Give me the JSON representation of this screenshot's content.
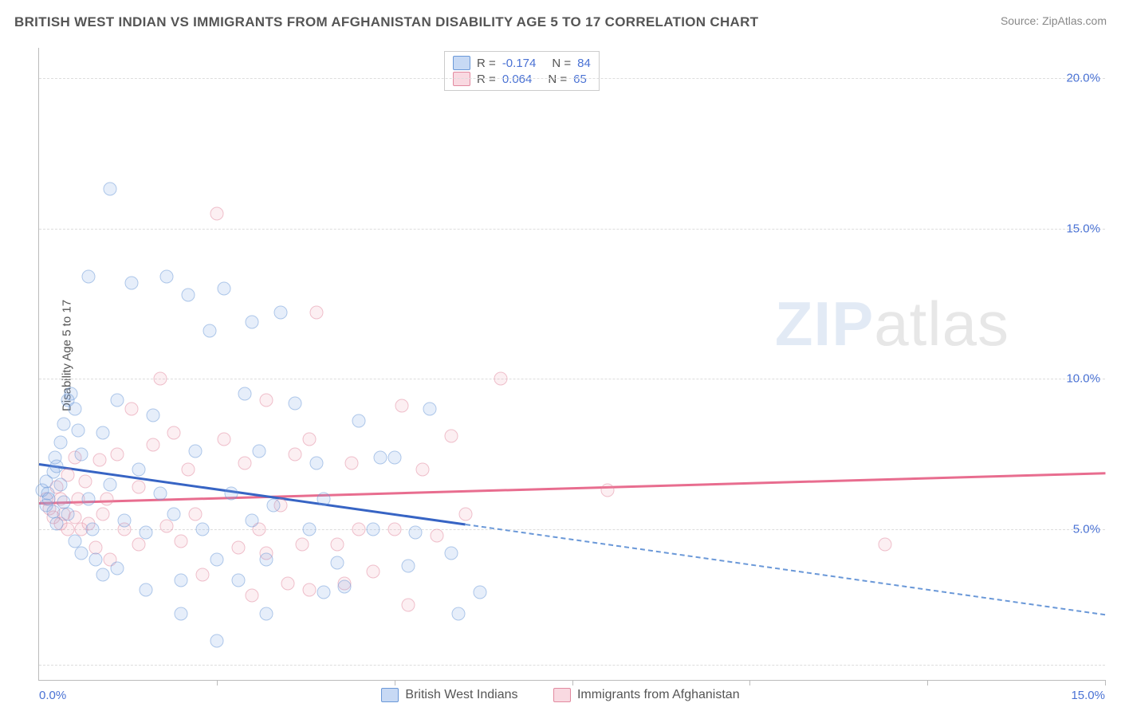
{
  "header": {
    "title": "BRITISH WEST INDIAN VS IMMIGRANTS FROM AFGHANISTAN DISABILITY AGE 5 TO 17 CORRELATION CHART",
    "source_label": "Source: ",
    "source_value": "ZipAtlas.com"
  },
  "watermark": {
    "part1": "ZIP",
    "part2": "atlas"
  },
  "chart": {
    "type": "scatter",
    "ylabel": "Disability Age 5 to 17",
    "xlim": [
      0,
      15
    ],
    "ylim": [
      0,
      21
    ],
    "xticks": [
      {
        "pos": 0,
        "label": "0.0%",
        "align": "left"
      },
      {
        "pos": 15,
        "label": "15.0%",
        "align": "right"
      }
    ],
    "xtick_marks": [
      2.5,
      5,
      7.5,
      10,
      12.5,
      15
    ],
    "yticks": [
      {
        "pos": 5,
        "label": "5.0%"
      },
      {
        "pos": 10,
        "label": "10.0%"
      },
      {
        "pos": 15,
        "label": "15.0%"
      },
      {
        "pos": 20,
        "label": "20.0%"
      }
    ],
    "grid_y": [
      0.5,
      5,
      10,
      15,
      20
    ],
    "background_color": "#ffffff",
    "grid_color": "#dddddd",
    "axis_color": "#bbbbbb",
    "tick_label_color": "#4a72d4",
    "r_legend": [
      {
        "swatch": "blue",
        "r_label": "R = ",
        "r": "-0.174",
        "n_label": "N = ",
        "n": "84"
      },
      {
        "swatch": "pink",
        "r_label": "R = ",
        "r": "0.064",
        "n_label": "N = ",
        "n": "65"
      }
    ],
    "bottom_legend": [
      {
        "swatch": "blue",
        "label": "British West Indians"
      },
      {
        "swatch": "pink",
        "label": "Immigrants from Afghanistan"
      }
    ],
    "series_blue": {
      "color_fill": "rgba(130,170,230,0.35)",
      "color_stroke": "#6a98d8",
      "trend_color": "#3764c4",
      "trend": {
        "x1": 0,
        "y1": 7.2,
        "x2_solid": 6.0,
        "y2_solid": 5.2,
        "x2": 15,
        "y2": 2.2
      },
      "points": [
        [
          0.05,
          6.3
        ],
        [
          0.1,
          5.8
        ],
        [
          0.1,
          6.6
        ],
        [
          0.12,
          6.2
        ],
        [
          0.14,
          6.0
        ],
        [
          0.2,
          6.9
        ],
        [
          0.2,
          5.6
        ],
        [
          0.22,
          7.4
        ],
        [
          0.25,
          7.1
        ],
        [
          0.25,
          5.2
        ],
        [
          0.3,
          7.9
        ],
        [
          0.3,
          6.5
        ],
        [
          0.35,
          8.5
        ],
        [
          0.35,
          5.9
        ],
        [
          0.4,
          9.3
        ],
        [
          0.4,
          5.5
        ],
        [
          0.45,
          9.5
        ],
        [
          0.5,
          9.0
        ],
        [
          0.5,
          4.6
        ],
        [
          0.55,
          8.3
        ],
        [
          0.6,
          7.5
        ],
        [
          0.6,
          4.2
        ],
        [
          0.7,
          6.0
        ],
        [
          0.7,
          13.4
        ],
        [
          0.75,
          5.0
        ],
        [
          0.8,
          4.0
        ],
        [
          0.9,
          8.2
        ],
        [
          0.9,
          3.5
        ],
        [
          1.0,
          16.3
        ],
        [
          1.0,
          6.5
        ],
        [
          1.1,
          9.3
        ],
        [
          1.1,
          3.7
        ],
        [
          1.2,
          5.3
        ],
        [
          1.3,
          13.2
        ],
        [
          1.4,
          7.0
        ],
        [
          1.5,
          4.9
        ],
        [
          1.5,
          3.0
        ],
        [
          1.6,
          8.8
        ],
        [
          1.7,
          6.2
        ],
        [
          1.8,
          13.4
        ],
        [
          1.9,
          5.5
        ],
        [
          2.0,
          3.3
        ],
        [
          2.0,
          2.2
        ],
        [
          2.1,
          12.8
        ],
        [
          2.2,
          7.6
        ],
        [
          2.3,
          5.0
        ],
        [
          2.4,
          11.6
        ],
        [
          2.5,
          4.0
        ],
        [
          2.5,
          1.3
        ],
        [
          2.6,
          13.0
        ],
        [
          2.7,
          6.2
        ],
        [
          2.8,
          3.3
        ],
        [
          2.9,
          9.5
        ],
        [
          3.0,
          11.9
        ],
        [
          3.0,
          5.3
        ],
        [
          3.1,
          7.6
        ],
        [
          3.2,
          4.0
        ],
        [
          3.2,
          2.2
        ],
        [
          3.3,
          5.8
        ],
        [
          3.4,
          12.2
        ],
        [
          3.6,
          9.2
        ],
        [
          3.8,
          5.0
        ],
        [
          3.9,
          7.2
        ],
        [
          4.0,
          6.0
        ],
        [
          4.2,
          3.9
        ],
        [
          4.5,
          8.6
        ],
        [
          4.7,
          5.0
        ],
        [
          4.8,
          7.4
        ],
        [
          5.0,
          7.4
        ],
        [
          5.2,
          3.8
        ],
        [
          5.3,
          4.9
        ],
        [
          5.5,
          9.0
        ],
        [
          5.8,
          4.2
        ],
        [
          5.9,
          2.2
        ],
        [
          6.2,
          2.9
        ],
        [
          4.0,
          2.9
        ],
        [
          4.3,
          3.1
        ]
      ]
    },
    "series_pink": {
      "color_fill": "rgba(240,160,180,0.3)",
      "color_stroke": "#e28aa0",
      "trend_color": "#e86d8f",
      "trend": {
        "x1": 0,
        "y1": 5.9,
        "x2": 15,
        "y2": 6.9
      },
      "points": [
        [
          0.1,
          6.0
        ],
        [
          0.15,
          5.7
        ],
        [
          0.2,
          5.4
        ],
        [
          0.25,
          6.4
        ],
        [
          0.3,
          5.2
        ],
        [
          0.3,
          6.0
        ],
        [
          0.35,
          5.5
        ],
        [
          0.4,
          6.8
        ],
        [
          0.4,
          5.0
        ],
        [
          0.5,
          7.4
        ],
        [
          0.5,
          5.4
        ],
        [
          0.55,
          6.0
        ],
        [
          0.6,
          5.0
        ],
        [
          0.65,
          6.6
        ],
        [
          0.7,
          5.2
        ],
        [
          0.8,
          4.4
        ],
        [
          0.85,
          7.3
        ],
        [
          0.9,
          5.5
        ],
        [
          0.95,
          6.0
        ],
        [
          1.0,
          4.0
        ],
        [
          1.1,
          7.5
        ],
        [
          1.2,
          5.0
        ],
        [
          1.3,
          9.0
        ],
        [
          1.4,
          6.4
        ],
        [
          1.4,
          4.5
        ],
        [
          1.6,
          7.8
        ],
        [
          1.7,
          10.0
        ],
        [
          1.8,
          5.1
        ],
        [
          1.9,
          8.2
        ],
        [
          2.0,
          4.6
        ],
        [
          2.1,
          7.0
        ],
        [
          2.2,
          5.5
        ],
        [
          2.3,
          3.5
        ],
        [
          2.5,
          15.5
        ],
        [
          2.6,
          8.0
        ],
        [
          2.8,
          4.4
        ],
        [
          2.9,
          7.2
        ],
        [
          3.0,
          2.8
        ],
        [
          3.1,
          5.0
        ],
        [
          3.2,
          9.3
        ],
        [
          3.2,
          4.2
        ],
        [
          3.4,
          5.8
        ],
        [
          3.5,
          3.2
        ],
        [
          3.6,
          7.5
        ],
        [
          3.7,
          4.5
        ],
        [
          3.8,
          8.0
        ],
        [
          3.8,
          3.0
        ],
        [
          3.9,
          12.2
        ],
        [
          4.2,
          4.5
        ],
        [
          4.3,
          3.2
        ],
        [
          4.4,
          7.2
        ],
        [
          4.5,
          5.0
        ],
        [
          4.7,
          3.6
        ],
        [
          5.0,
          5.0
        ],
        [
          5.1,
          9.1
        ],
        [
          5.2,
          2.5
        ],
        [
          5.4,
          7.0
        ],
        [
          5.6,
          4.8
        ],
        [
          5.8,
          8.1
        ],
        [
          6.0,
          5.5
        ],
        [
          6.5,
          10.0
        ],
        [
          8.0,
          6.3
        ],
        [
          11.9,
          4.5
        ]
      ]
    }
  }
}
